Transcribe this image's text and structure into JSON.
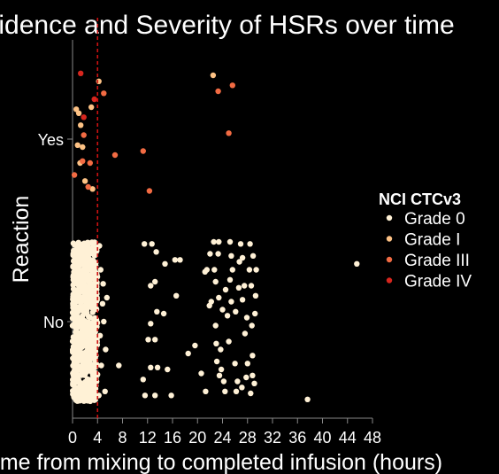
{
  "chart_data": {
    "type": "scatter",
    "title": "Incidence and Severity of HSRs over time",
    "xlabel": "Time from mixing to completed infusion (hours)",
    "ylabel": "Reaction",
    "xlim": [
      -0.5,
      48
    ],
    "x_ticks": [
      0,
      4,
      8,
      12,
      16,
      20,
      24,
      28,
      32,
      36,
      40,
      44,
      48
    ],
    "y_categories": [
      "No",
      "Yes"
    ],
    "reference_line": {
      "x": 4,
      "color": "#cc1111",
      "style": "dashed"
    },
    "grid": false,
    "legend": {
      "title": "NCI CTCv3",
      "position": "right",
      "entries": [
        {
          "label": "Grade 0",
          "color": "#fff1d6"
        },
        {
          "label": "Grade I",
          "color": "#fdc285"
        },
        {
          "label": "Grade III",
          "color": "#f26b43"
        },
        {
          "label": "Grade IV",
          "color": "#d7261e"
        }
      ]
    },
    "yes_points": [
      {
        "x": 1.3,
        "y": 0.33,
        "grade": "Grade IV"
      },
      {
        "x": 3.5,
        "y": 0.2,
        "grade": "Grade IV"
      },
      {
        "x": 1.8,
        "y": 0.11,
        "grade": "Grade IV"
      },
      {
        "x": 0.6,
        "y": 0.15,
        "grade": "Grade I"
      },
      {
        "x": 1.0,
        "y": 0.13,
        "grade": "Grade I"
      },
      {
        "x": 1.3,
        "y": 0.07,
        "grade": "Grade I"
      },
      {
        "x": 0.8,
        "y": -0.03,
        "grade": "Grade I"
      },
      {
        "x": 1.6,
        "y": -0.04,
        "grade": "Grade I"
      },
      {
        "x": 1.2,
        "y": -0.12,
        "grade": "Grade I"
      },
      {
        "x": 2.0,
        "y": -0.21,
        "grade": "Grade I"
      },
      {
        "x": 3.0,
        "y": 0.16,
        "grade": "Grade I"
      },
      {
        "x": 3.2,
        "y": -0.25,
        "grade": "Grade I"
      },
      {
        "x": 4.2,
        "y": 0.29,
        "grade": "Grade I"
      },
      {
        "x": 22.5,
        "y": 0.32,
        "grade": "Grade I"
      },
      {
        "x": 1.8,
        "y": 0.02,
        "grade": "Grade III"
      },
      {
        "x": 5.0,
        "y": 0.23,
        "grade": "Grade III"
      },
      {
        "x": 0.3,
        "y": -0.18,
        "grade": "Grade III"
      },
      {
        "x": 1.6,
        "y": -0.11,
        "grade": "Grade III"
      },
      {
        "x": 2.5,
        "y": -0.24,
        "grade": "Grade III"
      },
      {
        "x": 2.8,
        "y": -0.12,
        "grade": "Grade III"
      },
      {
        "x": 6.8,
        "y": -0.08,
        "grade": "Grade III"
      },
      {
        "x": 11.3,
        "y": -0.06,
        "grade": "Grade III"
      },
      {
        "x": 12.3,
        "y": -0.26,
        "grade": "Grade III"
      },
      {
        "x": 23.3,
        "y": 0.24,
        "grade": "Grade III"
      },
      {
        "x": 25.6,
        "y": 0.27,
        "grade": "Grade III"
      },
      {
        "x": 25.0,
        "y": 0.03,
        "grade": "Grade III"
      }
    ],
    "no_points_grade0": [
      {
        "x": 11.5,
        "y": 0.39
      },
      {
        "x": 12.7,
        "y": 0.39
      },
      {
        "x": 13.4,
        "y": 0.35
      },
      {
        "x": 14.8,
        "y": 0.29
      },
      {
        "x": 16.4,
        "y": 0.31
      },
      {
        "x": 17.2,
        "y": 0.31
      },
      {
        "x": 13.2,
        "y": 0.2
      },
      {
        "x": 12.5,
        "y": 0.18
      },
      {
        "x": 14.6,
        "y": 0.04
      },
      {
        "x": 16.6,
        "y": 0.13
      },
      {
        "x": 13.5,
        "y": 0.05
      },
      {
        "x": 12.5,
        "y": -0.01
      },
      {
        "x": 12.1,
        "y": -0.09
      },
      {
        "x": 13.2,
        "y": -0.09
      },
      {
        "x": 12.5,
        "y": -0.23
      },
      {
        "x": 13.6,
        "y": -0.23
      },
      {
        "x": 11.3,
        "y": -0.29
      },
      {
        "x": 11.6,
        "y": -0.37
      },
      {
        "x": 13.2,
        "y": -0.37
      },
      {
        "x": 15.2,
        "y": -0.24
      },
      {
        "x": 15.8,
        "y": -0.37
      },
      {
        "x": 18.5,
        "y": -0.16
      },
      {
        "x": 19.6,
        "y": -0.12
      },
      {
        "x": 20.6,
        "y": -0.26
      },
      {
        "x": 21.3,
        "y": -0.35
      },
      {
        "x": 21.5,
        "y": 0.26
      },
      {
        "x": 21.2,
        "y": 0.25
      },
      {
        "x": 21.9,
        "y": 0.08
      },
      {
        "x": 22.0,
        "y": 0.34
      },
      {
        "x": 22.6,
        "y": 0.4
      },
      {
        "x": 23.4,
        "y": 0.4
      },
      {
        "x": 23.3,
        "y": 0.34
      },
      {
        "x": 22.7,
        "y": 0.26
      },
      {
        "x": 22.9,
        "y": 0.2
      },
      {
        "x": 23.4,
        "y": 0.12
      },
      {
        "x": 22.2,
        "y": 0.1
      },
      {
        "x": 22.9,
        "y": -0.02
      },
      {
        "x": 23.0,
        "y": -0.11
      },
      {
        "x": 23.7,
        "y": -0.14
      },
      {
        "x": 23.1,
        "y": -0.2
      },
      {
        "x": 23.8,
        "y": -0.24
      },
      {
        "x": 24.2,
        "y": -0.3
      },
      {
        "x": 23.5,
        "y": -0.27
      },
      {
        "x": 24.4,
        "y": -0.35
      },
      {
        "x": 24.0,
        "y": 0.06
      },
      {
        "x": 24.5,
        "y": 0.16
      },
      {
        "x": 24.8,
        "y": 0.03
      },
      {
        "x": 25.0,
        "y": -0.1
      },
      {
        "x": 25.2,
        "y": 0.4
      },
      {
        "x": 25.4,
        "y": 0.33
      },
      {
        "x": 25.6,
        "y": 0.26
      },
      {
        "x": 25.2,
        "y": 0.21
      },
      {
        "x": 25.4,
        "y": 0.1
      },
      {
        "x": 26.1,
        "y": 0.05
      },
      {
        "x": 26.0,
        "y": -0.21
      },
      {
        "x": 26.2,
        "y": -0.35
      },
      {
        "x": 26.6,
        "y": 0.17
      },
      {
        "x": 26.7,
        "y": 0.3
      },
      {
        "x": 26.9,
        "y": 0.39
      },
      {
        "x": 27.2,
        "y": 0.32
      },
      {
        "x": 27.2,
        "y": 0.11
      },
      {
        "x": 27.5,
        "y": 0.18
      },
      {
        "x": 27.6,
        "y": -0.06
      },
      {
        "x": 27.9,
        "y": 0.02
      },
      {
        "x": 27.8,
        "y": -0.28
      },
      {
        "x": 27.1,
        "y": -0.33
      },
      {
        "x": 26.4,
        "y": -0.3
      },
      {
        "x": 28.0,
        "y": -0.21
      },
      {
        "x": 28.3,
        "y": 0.26
      },
      {
        "x": 28.4,
        "y": 0.39
      },
      {
        "x": 28.6,
        "y": 0.18
      },
      {
        "x": 28.9,
        "y": 0.33
      },
      {
        "x": 28.7,
        "y": -0.02
      },
      {
        "x": 28.8,
        "y": -0.17
      },
      {
        "x": 28.8,
        "y": -0.27
      },
      {
        "x": 28.5,
        "y": -0.36
      },
      {
        "x": 29.3,
        "y": 0.13
      },
      {
        "x": 29.4,
        "y": 0.26
      },
      {
        "x": 29.2,
        "y": 0.04
      },
      {
        "x": 29.1,
        "y": -0.31
      },
      {
        "x": 37.6,
        "y": -0.39
      },
      {
        "x": 45.5,
        "y": 0.29
      },
      {
        "x": 4.3,
        "y": 0.38
      },
      {
        "x": 4.5,
        "y": 0.26
      },
      {
        "x": 4.8,
        "y": 0.09
      },
      {
        "x": 4.4,
        "y": -0.07
      },
      {
        "x": 4.6,
        "y": -0.22
      },
      {
        "x": 5.0,
        "y": 0.0
      },
      {
        "x": 5.2,
        "y": -0.35
      },
      {
        "x": 4.9,
        "y": 0.19
      },
      {
        "x": 5.3,
        "y": -0.14
      },
      {
        "x": 7.4,
        "y": -0.22
      },
      {
        "x": 4.2,
        "y": -0.37
      },
      {
        "x": 5.5,
        "y": 0.12
      }
    ],
    "no_points_dense_cluster": {
      "x_range": [
        0,
        4
      ],
      "grade": "Grade 0",
      "approximate_count": 700
    }
  }
}
